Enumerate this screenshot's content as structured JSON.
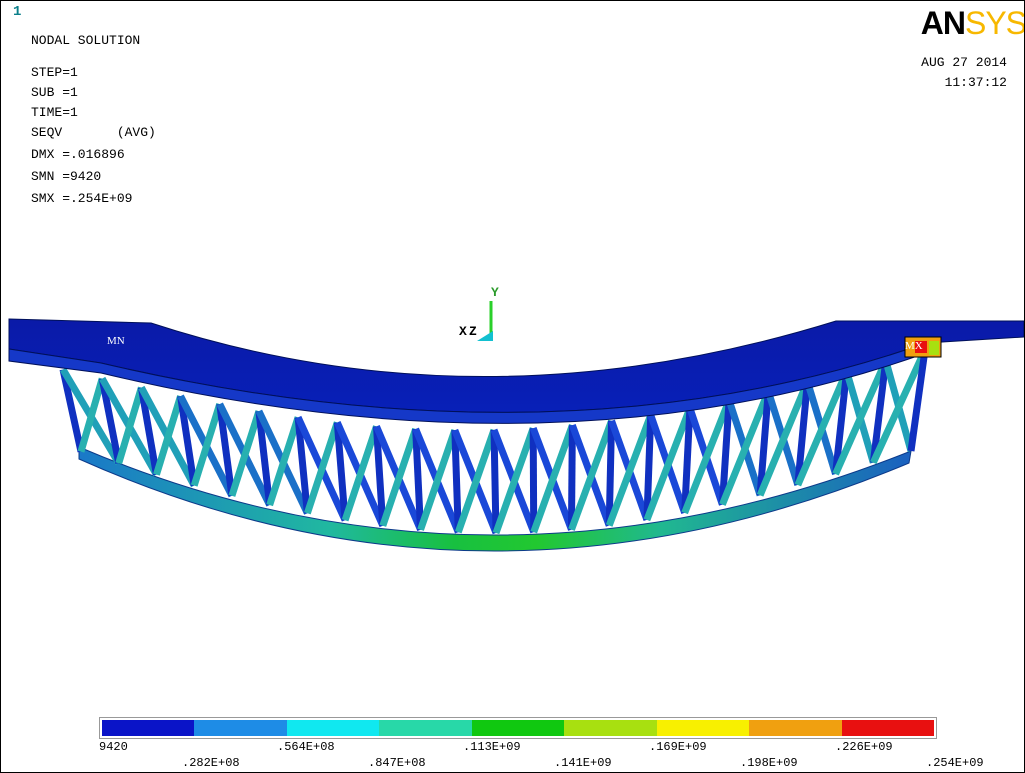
{
  "window_number": "1",
  "info": {
    "title": "NODAL SOLUTION",
    "step": "STEP=1",
    "sub": "SUB =1",
    "time": "TIME=1",
    "result": "SEQV       (AVG)",
    "dmx": "DMX =.016896",
    "smn": "SMN =9420",
    "smx": "SMX =.254E+09"
  },
  "logo": {
    "an": "AN",
    "sys": "SYS"
  },
  "date": {
    "day": "AUG 27 2014",
    "time": "11:37:12"
  },
  "triad": {
    "y": "Y",
    "x": "X",
    "z": "Z"
  },
  "markers": {
    "min": "MN",
    "max": "MX"
  },
  "legend": {
    "colors": [
      "#0a14c8",
      "#1e8ce6",
      "#10e8f0",
      "#28d8a8",
      "#10c810",
      "#a8e010",
      "#f8f000",
      "#f0a010",
      "#e81010"
    ],
    "upper_labels": [
      "9420",
      ".564E+08",
      ".113E+09",
      ".169E+09",
      ".226E+09"
    ],
    "lower_labels": [
      ".282E+08",
      ".847E+08",
      ".141E+09",
      ".198E+09",
      ".254E+09"
    ]
  }
}
